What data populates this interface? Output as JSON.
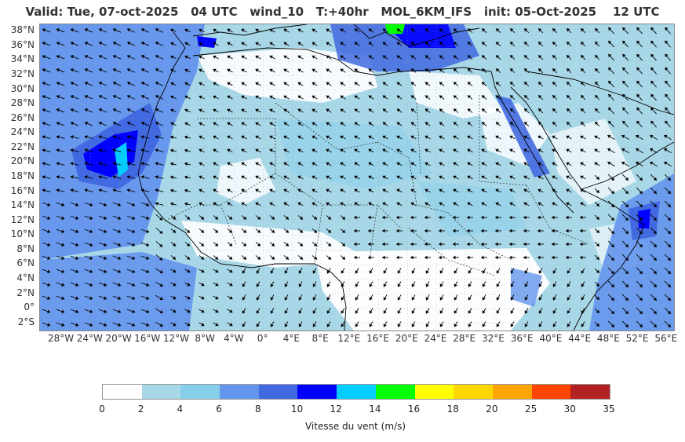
{
  "title": "Valid: Tue, 07-oct-2025   04 UTC   wind_10   T:+40hr   MOL_6KM_IFS   init: 05-Oct-2025    12 UTC",
  "map": {
    "lat_labels": [
      "38°N",
      "36°N",
      "34°N",
      "32°N",
      "30°N",
      "28°N",
      "26°N",
      "24°N",
      "22°N",
      "20°N",
      "18°N",
      "16°N",
      "14°N",
      "12°N",
      "10°N",
      "8°N",
      "6°N",
      "4°N",
      "2°N",
      "0°",
      "2°S"
    ],
    "lat_values": [
      38,
      36,
      34,
      32,
      30,
      28,
      26,
      24,
      22,
      20,
      18,
      16,
      14,
      12,
      10,
      8,
      6,
      4,
      2,
      0,
      -2
    ],
    "lon_labels": [
      "28°W",
      "24°W",
      "20°W",
      "16°W",
      "12°W",
      "8°W",
      "4°W",
      "0°",
      "4°E",
      "8°E",
      "12°E",
      "16°E",
      "20°E",
      "24°E",
      "28°E",
      "32°E",
      "36°E",
      "40°E",
      "44°E",
      "48°E",
      "52°E",
      "56°E"
    ],
    "lon_values": [
      -28,
      -24,
      -20,
      -16,
      -12,
      -8,
      -4,
      0,
      4,
      8,
      12,
      16,
      20,
      24,
      28,
      32,
      36,
      40,
      44,
      48,
      52,
      56
    ],
    "lat_range": [
      -3,
      39
    ],
    "lon_range": [
      -31,
      57
    ],
    "variable": "wind_10"
  },
  "colorbar": {
    "ticks": [
      "0",
      "2",
      "4",
      "6",
      "8",
      "10",
      "12",
      "14",
      "16",
      "18",
      "20",
      "25",
      "30",
      "35"
    ],
    "colors": [
      "#ffffff",
      "#a8d8e8",
      "#87ceeb",
      "#6495ed",
      "#4169e1",
      "#0000ff",
      "#00ccff",
      "#00ff00",
      "#ffff00",
      "#ffd700",
      "#ffa500",
      "#ff4500",
      "#b22222"
    ],
    "label": "Vitesse du vent (m/s)"
  }
}
